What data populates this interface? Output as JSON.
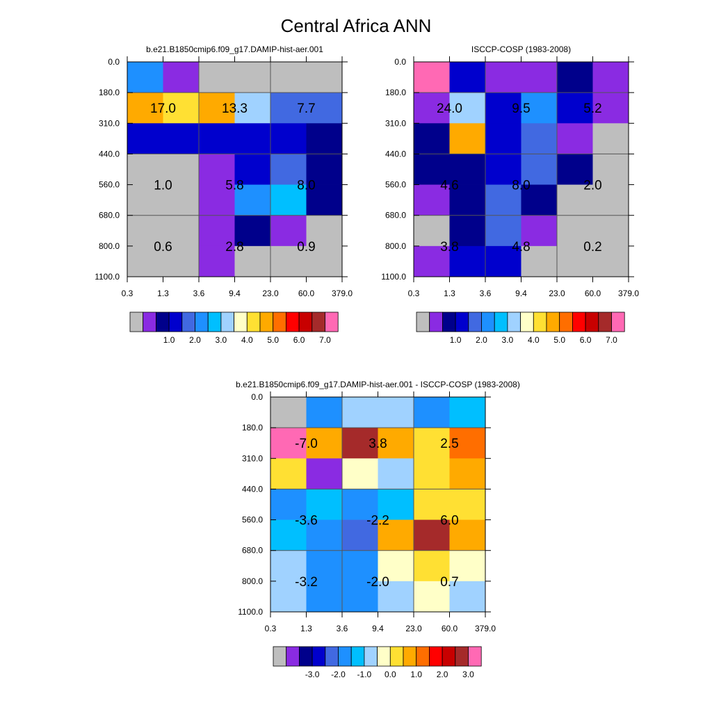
{
  "figure": {
    "title": "Central Africa ANN"
  },
  "colors": {
    "missing": "#bebebe",
    "palette": [
      "#bebebe",
      "#8a2be2",
      "#00008b",
      "#0000cd",
      "#4169e1",
      "#1e90ff",
      "#00bfff",
      "#a0d2ff",
      "#ffffc8",
      "#ffe033",
      "#ffaa00",
      "#ff6e00",
      "#ff0000",
      "#c80000",
      "#a52a2a",
      "#ff69b4"
    ]
  },
  "chart_data": [
    {
      "type": "heatmap",
      "title": "b.e21.B1850cmip6.f09_g17.DAMIP-hist-aer.001",
      "x_ticks": [
        "0.3",
        "1.3",
        "3.6",
        "9.4",
        "23.0",
        "60.0",
        "379.0"
      ],
      "y_ticks": [
        "0.0",
        "180.0",
        "310.0",
        "440.0",
        "560.0",
        "680.0",
        "800.0",
        "1100.0"
      ],
      "cells": [
        [
          5,
          1,
          0,
          0,
          0,
          0
        ],
        [
          10,
          9,
          10,
          7,
          4,
          4
        ],
        [
          3,
          3,
          3,
          3,
          3,
          2
        ],
        [
          0,
          0,
          1,
          3,
          4,
          2
        ],
        [
          0,
          0,
          1,
          5,
          6,
          2
        ],
        [
          0,
          0,
          1,
          2,
          1,
          0
        ],
        [
          0,
          0,
          1,
          0,
          0,
          0
        ]
      ],
      "block_labels": [
        [
          "17.0",
          "13.3",
          "7.7"
        ],
        [
          "1.0",
          "5.8",
          "8.0"
        ],
        [
          "0.6",
          "2.8",
          "0.9"
        ]
      ],
      "colorbar": {
        "labels": [
          "1.0",
          "2.0",
          "3.0",
          "4.0",
          "5.0",
          "6.0",
          "7.0"
        ]
      }
    },
    {
      "type": "heatmap",
      "title": "ISCCP-COSP (1983-2008)",
      "x_ticks": [
        "0.3",
        "1.3",
        "3.6",
        "9.4",
        "23.0",
        "60.0",
        "379.0"
      ],
      "y_ticks": [
        "0.0",
        "180.0",
        "310.0",
        "440.0",
        "560.0",
        "680.0",
        "800.0",
        "1100.0"
      ],
      "cells": [
        [
          15,
          3,
          1,
          1,
          2,
          1
        ],
        [
          1,
          7,
          3,
          5,
          3,
          1
        ],
        [
          2,
          10,
          3,
          4,
          1,
          0
        ],
        [
          2,
          2,
          3,
          4,
          2,
          0
        ],
        [
          1,
          2,
          4,
          2,
          0,
          0
        ],
        [
          0,
          2,
          4,
          1,
          0,
          0
        ],
        [
          1,
          3,
          3,
          0,
          0,
          0
        ]
      ],
      "block_labels": [
        [
          "24.0",
          "9.5",
          "5.2"
        ],
        [
          "4.6",
          "8.0",
          "2.0"
        ],
        [
          "3.8",
          "4.8",
          "0.2"
        ]
      ],
      "colorbar": {
        "labels": [
          "1.0",
          "2.0",
          "3.0",
          "4.0",
          "5.0",
          "6.0",
          "7.0"
        ]
      }
    },
    {
      "type": "heatmap",
      "title": "b.e21.B1850cmip6.f09_g17.DAMIP-hist-aer.001 - ISCCP-COSP (1983-2008)",
      "x_ticks": [
        "0.3",
        "1.3",
        "3.6",
        "9.4",
        "23.0",
        "60.0",
        "379.0"
      ],
      "y_ticks": [
        "0.0",
        "180.0",
        "310.0",
        "440.0",
        "560.0",
        "680.0",
        "800.0",
        "1100.0"
      ],
      "cells": [
        [
          0,
          5,
          7,
          7,
          5,
          6
        ],
        [
          15,
          10,
          14,
          10,
          9,
          11
        ],
        [
          9,
          1,
          8,
          7,
          9,
          10
        ],
        [
          5,
          6,
          5,
          6,
          9,
          9
        ],
        [
          6,
          5,
          4,
          10,
          14,
          10
        ],
        [
          7,
          5,
          5,
          8,
          9,
          8
        ],
        [
          7,
          5,
          5,
          7,
          8,
          7
        ]
      ],
      "block_labels": [
        [
          "-7.0",
          "3.8",
          "2.5"
        ],
        [
          "-3.6",
          "-2.2",
          "6.0"
        ],
        [
          "-3.2",
          "-2.0",
          "0.7"
        ]
      ],
      "colorbar": {
        "labels": [
          "-3.0",
          "-2.0",
          "-1.0",
          "0.0",
          "1.0",
          "2.0",
          "3.0"
        ]
      }
    }
  ]
}
